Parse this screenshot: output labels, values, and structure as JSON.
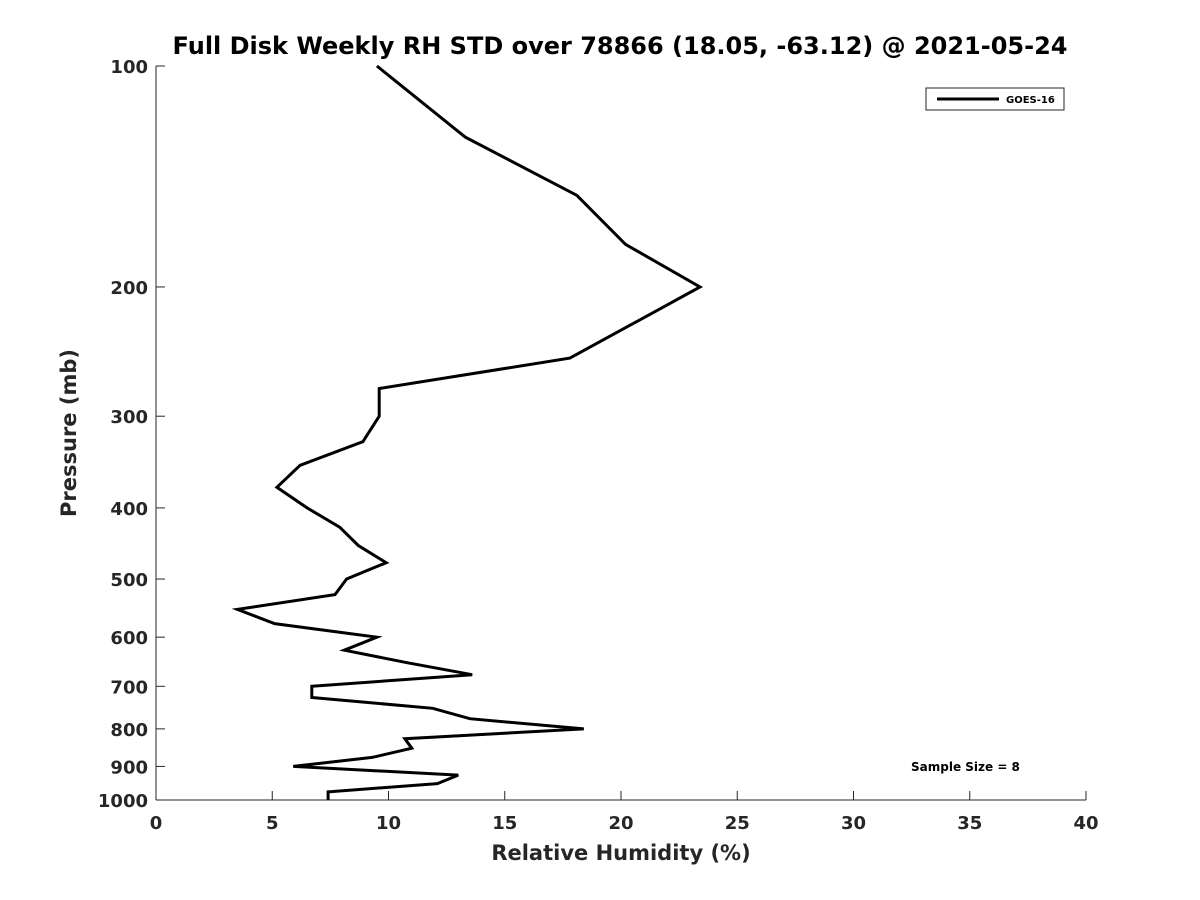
{
  "chart_data": {
    "type": "line",
    "title": "Full Disk Weekly RH STD over 78866 (18.05, -63.12) @ 2021-05-24",
    "xlabel": "Relative Humidity (%)",
    "ylabel": "Pressure (mb)",
    "xlim": [
      0,
      40
    ],
    "ylim": [
      100,
      1000
    ],
    "y_scale": "log",
    "y_reversed": true,
    "x_ticks": [
      "0",
      "5",
      "10",
      "15",
      "20",
      "25",
      "30",
      "35",
      "40"
    ],
    "y_ticks": [
      "100",
      "200",
      "300",
      "400",
      "500",
      "600",
      "700",
      "800",
      "900",
      "1000"
    ],
    "grid": false,
    "legend_position": "top-right",
    "annotation": "Sample Size = 8",
    "series": [
      {
        "name": "GOES-16",
        "color": "#000000",
        "points": [
          [
            9.5,
            100
          ],
          [
            13.3,
            125
          ],
          [
            18.1,
            150
          ],
          [
            20.2,
            175
          ],
          [
            23.4,
            200
          ],
          [
            17.8,
            250
          ],
          [
            9.6,
            275
          ],
          [
            9.6,
            300
          ],
          [
            8.9,
            325
          ],
          [
            6.2,
            350
          ],
          [
            5.2,
            375
          ],
          [
            6.5,
            400
          ],
          [
            7.9,
            425
          ],
          [
            8.7,
            450
          ],
          [
            9.9,
            475
          ],
          [
            8.2,
            500
          ],
          [
            7.7,
            525
          ],
          [
            3.5,
            550
          ],
          [
            5.1,
            575
          ],
          [
            9.5,
            600
          ],
          [
            8.1,
            625
          ],
          [
            10.8,
            650
          ],
          [
            13.6,
            675
          ],
          [
            6.7,
            700
          ],
          [
            6.7,
            725
          ],
          [
            11.9,
            750
          ],
          [
            13.5,
            775
          ],
          [
            18.4,
            800
          ],
          [
            10.7,
            825
          ],
          [
            11.0,
            850
          ],
          [
            9.3,
            875
          ],
          [
            5.9,
            900
          ],
          [
            13.0,
            925
          ],
          [
            12.1,
            950
          ],
          [
            7.4,
            975
          ],
          [
            7.4,
            1000
          ]
        ]
      }
    ]
  }
}
